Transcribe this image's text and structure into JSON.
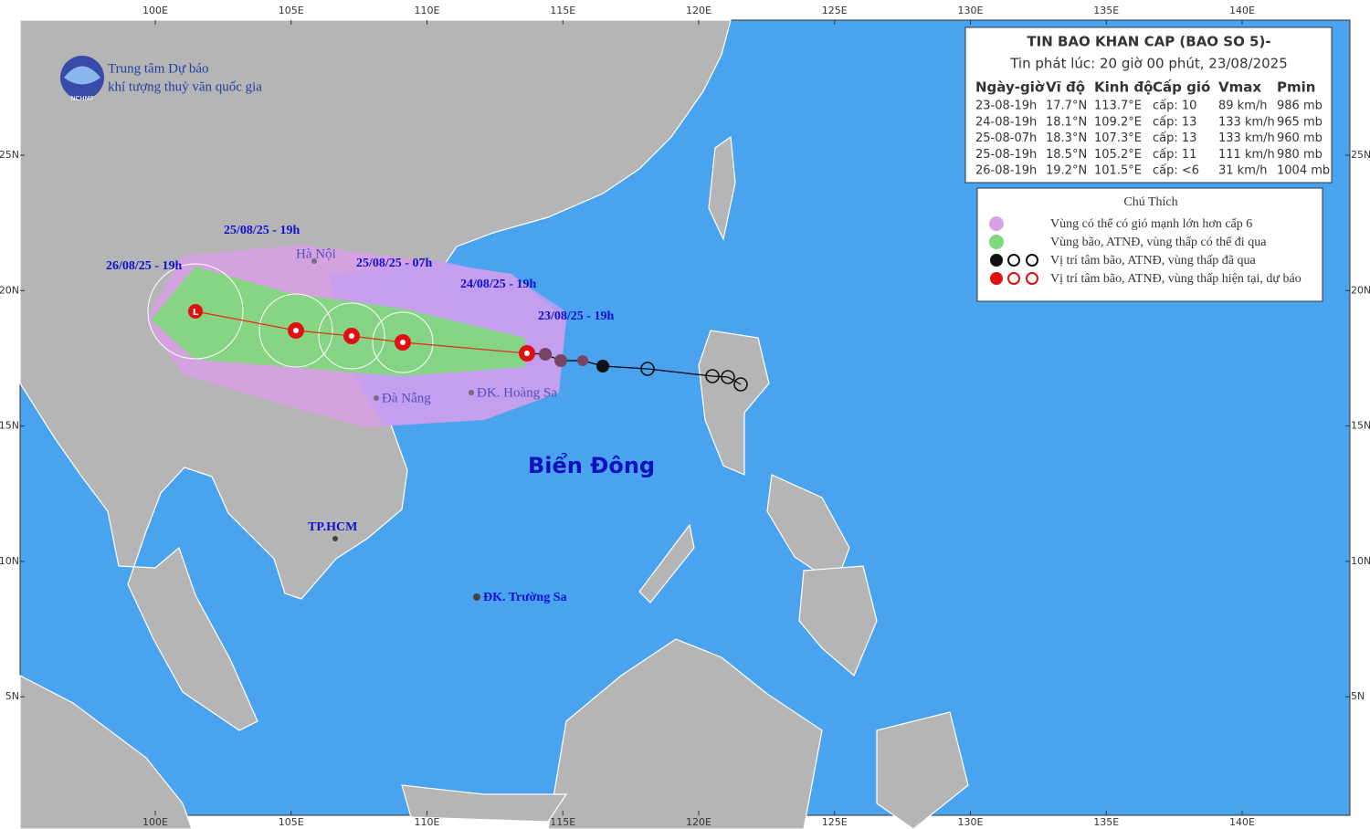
{
  "logo": {
    "line1": "Trung tâm Dự báo",
    "line2": "khí tượng thuỷ văn quốc gia",
    "abbr": "NCHMF"
  },
  "axes": {
    "lon_labels": [
      "100E",
      "105E",
      "110E",
      "115E",
      "120E",
      "125E",
      "130E",
      "135E",
      "140E"
    ],
    "lat_labels": [
      "25N",
      "20N",
      "15N",
      "10N",
      "5N"
    ]
  },
  "bulletin": {
    "title": "TIN BAO KHAN CAP (BAO SO 5)-",
    "issued": "Tin phát lúc: 20 giờ 00 phút, 23/08/2025",
    "columns": [
      "Ngày-giờ",
      "Vĩ độ",
      "Kinh độ",
      "Cấp gió",
      "Vmax",
      "Pmin"
    ],
    "rows": [
      [
        "23-08-19h",
        "17.7°N",
        "113.7°E",
        "cấp: 10",
        "89 km/h",
        "986 mb"
      ],
      [
        "24-08-19h",
        "18.1°N",
        "109.2°E",
        "cấp: 13",
        "133 km/h",
        "965 mb"
      ],
      [
        "25-08-07h",
        "18.3°N",
        "107.3°E",
        "cấp: 13",
        "133 km/h",
        "960 mb"
      ],
      [
        "25-08-19h",
        "18.5°N",
        "105.2°E",
        "cấp: 11",
        "111 km/h",
        "980 mb"
      ],
      [
        "26-08-19h",
        "19.2°N",
        "101.5°E",
        "cấp: <6",
        "31 km/h",
        "1004 mb"
      ]
    ]
  },
  "legend": {
    "title": "Chú Thích",
    "items": [
      "Vùng có thể có gió mạnh lớn hơn cấp 6",
      "Vùng bão, ATNĐ, vùng thấp có thể đi qua",
      "Vị trí tâm bão, ATNĐ, vùng thấp đã qua",
      "Vị trí tâm bão, ATNĐ, vùng thấp hiện tại, dự báo"
    ]
  },
  "map_labels": {
    "track_times": [
      "26/08/25 - 19h",
      "25/08/25 - 19h",
      "25/08/25 - 07h",
      "24/08/25 - 19h",
      "23/08/25 - 19h"
    ],
    "places": [
      "Hà Nội",
      "Đà Nẵng",
      "ĐK. Hoàng Sa",
      "TP.HCM",
      "ĐK. Trường Sa"
    ],
    "sea": "Biển Đông"
  }
}
